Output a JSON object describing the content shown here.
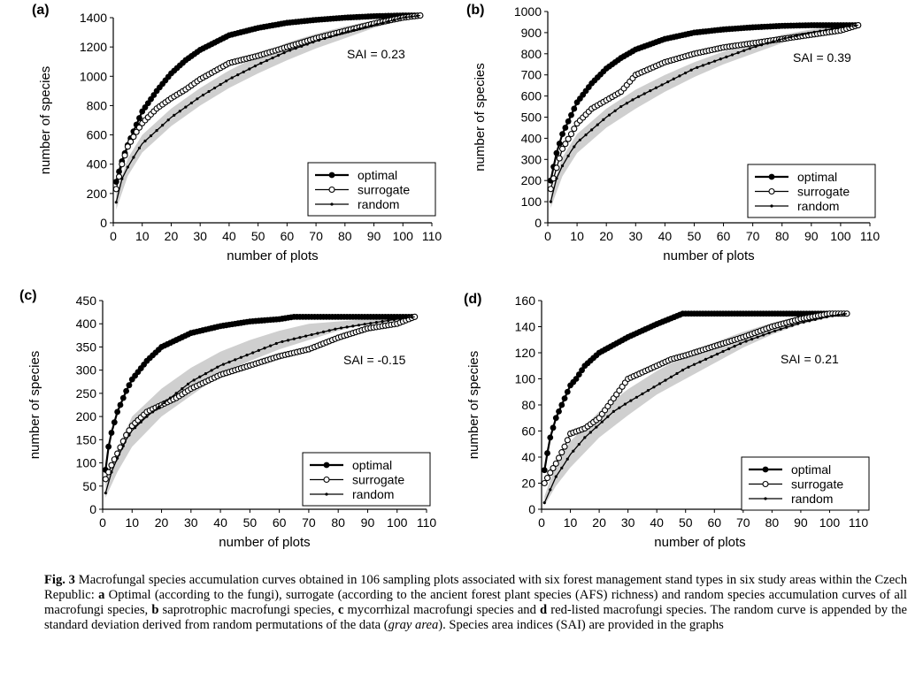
{
  "figure": {
    "caption": {
      "label": "Fig. 3",
      "parts": [
        {
          "t": "  Macrofungal species accumulation curves obtained in 106 sampling plots associated with six forest management stand types in six study areas within the Czech Republic: "
        },
        {
          "t": "a",
          "b": true
        },
        {
          "t": " Optimal (according to the fungi), surrogate (according to the ancient forest plant species (AFS) richness) and random species accumulation curves of all macrofungi species, "
        },
        {
          "t": "b",
          "b": true
        },
        {
          "t": " saprotrophic macrofungi species, "
        },
        {
          "t": "c",
          "b": true
        },
        {
          "t": " mycorrhizal macrofungi species and "
        },
        {
          "t": "d",
          "b": true
        },
        {
          "t": " red-listed macrofungi species. The random curve is appended by the standard deviation derived from random permutations of the data ("
        },
        {
          "t": "gray area",
          "i": true
        },
        {
          "t": "). Species area indices (SAI) are provided in the graphs"
        }
      ]
    }
  },
  "colors": {
    "line": "#000000",
    "band": "#cfcfcf",
    "open_fill": "#ffffff"
  },
  "chart_data": [
    {
      "panel": "(a)",
      "type": "line",
      "xlabel": "number of plots",
      "ylabel": "number of species",
      "xlim": [
        0,
        110
      ],
      "ylim": [
        0,
        1400
      ],
      "xticks": [
        0,
        10,
        20,
        30,
        40,
        50,
        60,
        70,
        80,
        90,
        100,
        110
      ],
      "yticks": [
        0,
        200,
        400,
        600,
        800,
        1000,
        1200,
        1400
      ],
      "annotation": "SAI = 0.23",
      "legend_position": "bottom-right",
      "series": [
        {
          "name": "optimal",
          "marker": "filled",
          "x": [
            1,
            3,
            5,
            8,
            10,
            15,
            20,
            25,
            30,
            40,
            50,
            60,
            70,
            80,
            90,
            100,
            106
          ],
          "y": [
            280,
            420,
            530,
            670,
            760,
            900,
            1020,
            1110,
            1180,
            1280,
            1330,
            1365,
            1385,
            1400,
            1410,
            1415,
            1415
          ]
        },
        {
          "name": "surrogate",
          "marker": "open",
          "x": [
            1,
            3,
            5,
            8,
            10,
            15,
            20,
            25,
            30,
            40,
            50,
            60,
            70,
            80,
            90,
            100,
            106
          ],
          "y": [
            230,
            400,
            520,
            620,
            680,
            780,
            850,
            910,
            980,
            1090,
            1140,
            1200,
            1260,
            1310,
            1360,
            1400,
            1415
          ]
        },
        {
          "name": "random",
          "marker": "dot",
          "x": [
            1,
            3,
            5,
            8,
            10,
            15,
            20,
            25,
            30,
            40,
            50,
            60,
            70,
            80,
            90,
            100,
            106
          ],
          "y": [
            140,
            300,
            380,
            480,
            540,
            630,
            720,
            790,
            860,
            980,
            1080,
            1170,
            1240,
            1300,
            1350,
            1400,
            1415
          ]
        }
      ],
      "band": {
        "x": [
          1,
          5,
          10,
          20,
          30,
          40,
          50,
          60,
          70,
          80,
          90,
          100,
          106
        ],
        "lower": [
          90,
          320,
          480,
          660,
          800,
          920,
          1020,
          1110,
          1190,
          1260,
          1330,
          1385,
          1415
        ],
        "upper": [
          200,
          440,
          600,
          780,
          920,
          1040,
          1140,
          1230,
          1290,
          1340,
          1380,
          1410,
          1415
        ]
      }
    },
    {
      "panel": "(b)",
      "type": "line",
      "xlabel": "number of plots",
      "ylabel": "number of species",
      "xlim": [
        0,
        110
      ],
      "ylim": [
        0,
        1000
      ],
      "xticks": [
        0,
        10,
        20,
        30,
        40,
        50,
        60,
        70,
        80,
        90,
        100,
        110
      ],
      "yticks": [
        0,
        100,
        200,
        300,
        400,
        500,
        600,
        700,
        800,
        900,
        1000
      ],
      "annotation": "SAI = 0.39",
      "legend_position": "bottom-right",
      "series": [
        {
          "name": "optimal",
          "marker": "filled",
          "x": [
            1,
            3,
            5,
            8,
            10,
            15,
            20,
            25,
            30,
            40,
            50,
            60,
            70,
            80,
            90,
            100,
            106
          ],
          "y": [
            200,
            330,
            420,
            510,
            570,
            660,
            730,
            780,
            820,
            870,
            900,
            915,
            925,
            932,
            935,
            935,
            935
          ]
        },
        {
          "name": "surrogate",
          "marker": "open",
          "x": [
            1,
            3,
            5,
            8,
            10,
            15,
            20,
            25,
            30,
            40,
            50,
            60,
            70,
            80,
            90,
            100,
            106
          ],
          "y": [
            160,
            260,
            350,
            420,
            470,
            540,
            580,
            620,
            700,
            760,
            800,
            830,
            850,
            870,
            890,
            910,
            935
          ]
        },
        {
          "name": "random",
          "marker": "dot",
          "x": [
            1,
            3,
            5,
            8,
            10,
            15,
            20,
            25,
            30,
            40,
            50,
            60,
            70,
            80,
            90,
            100,
            106
          ],
          "y": [
            100,
            210,
            270,
            340,
            380,
            440,
            500,
            550,
            590,
            660,
            730,
            780,
            830,
            870,
            900,
            925,
            935
          ]
        }
      ],
      "band": {
        "x": [
          1,
          5,
          10,
          20,
          30,
          40,
          50,
          60,
          70,
          80,
          90,
          100,
          106
        ],
        "lower": [
          70,
          220,
          330,
          450,
          540,
          620,
          690,
          750,
          800,
          850,
          890,
          920,
          935
        ],
        "upper": [
          140,
          310,
          420,
          540,
          630,
          700,
          760,
          810,
          850,
          890,
          915,
          930,
          935
        ]
      }
    },
    {
      "panel": "(c)",
      "type": "line",
      "xlabel": "number of plots",
      "ylabel": "number of species",
      "xlim": [
        0,
        110
      ],
      "ylim": [
        0,
        450
      ],
      "xticks": [
        0,
        10,
        20,
        30,
        40,
        50,
        60,
        70,
        80,
        90,
        100,
        110
      ],
      "yticks": [
        0,
        50,
        100,
        150,
        200,
        250,
        300,
        350,
        400,
        450
      ],
      "annotation": "SAI = -0.15",
      "legend_position": "bottom-right",
      "series": [
        {
          "name": "optimal",
          "marker": "filled",
          "x": [
            1,
            2,
            3,
            5,
            8,
            10,
            15,
            20,
            25,
            30,
            40,
            50,
            60,
            65,
            70,
            80,
            90,
            100,
            106
          ],
          "y": [
            85,
            135,
            165,
            210,
            255,
            280,
            320,
            350,
            365,
            380,
            395,
            405,
            410,
            415,
            415,
            415,
            415,
            415,
            415
          ]
        },
        {
          "name": "surrogate",
          "marker": "open",
          "x": [
            1,
            3,
            5,
            8,
            10,
            15,
            20,
            25,
            30,
            40,
            50,
            60,
            70,
            80,
            90,
            100,
            106
          ],
          "y": [
            65,
            95,
            120,
            160,
            180,
            210,
            225,
            240,
            260,
            290,
            310,
            330,
            345,
            370,
            390,
            400,
            415
          ]
        },
        {
          "name": "random",
          "marker": "dot",
          "x": [
            1,
            3,
            5,
            8,
            10,
            15,
            20,
            25,
            30,
            40,
            50,
            60,
            70,
            80,
            90,
            100,
            106
          ],
          "y": [
            35,
            80,
            110,
            150,
            170,
            200,
            225,
            250,
            275,
            310,
            335,
            360,
            375,
            390,
            400,
            410,
            415
          ]
        }
      ],
      "band": {
        "x": [
          1,
          5,
          10,
          20,
          30,
          40,
          50,
          60,
          70,
          80,
          90,
          100,
          106
        ],
        "lower": [
          25,
          80,
          135,
          200,
          245,
          290,
          320,
          345,
          365,
          385,
          400,
          410,
          415
        ],
        "upper": [
          55,
          130,
          200,
          260,
          305,
          340,
          365,
          385,
          400,
          405,
          410,
          415,
          415
        ]
      }
    },
    {
      "panel": "(d)",
      "type": "line",
      "xlabel": "number of plots",
      "ylabel": "number of species",
      "xlim": [
        0,
        110
      ],
      "ylim": [
        0,
        160
      ],
      "xticks": [
        0,
        10,
        20,
        30,
        40,
        50,
        60,
        70,
        80,
        90,
        100,
        110
      ],
      "yticks": [
        0,
        20,
        40,
        60,
        80,
        100,
        120,
        140,
        160
      ],
      "annotation": "SAI = 0.21",
      "legend_position": "bottom-right",
      "series": [
        {
          "name": "optimal",
          "marker": "filled",
          "x": [
            1,
            2,
            3,
            5,
            8,
            10,
            12,
            15,
            20,
            25,
            30,
            40,
            49,
            60,
            70,
            80,
            90,
            100,
            106
          ],
          "y": [
            30,
            43,
            55,
            70,
            85,
            95,
            100,
            110,
            120,
            126,
            132,
            142,
            150,
            150,
            150,
            150,
            150,
            150,
            150
          ]
        },
        {
          "name": "surrogate",
          "marker": "open",
          "x": [
            1,
            3,
            5,
            8,
            10,
            15,
            20,
            25,
            30,
            35,
            40,
            45,
            50,
            60,
            70,
            80,
            90,
            100,
            106
          ],
          "y": [
            20,
            28,
            35,
            48,
            58,
            62,
            70,
            85,
            100,
            105,
            110,
            115,
            118,
            125,
            132,
            140,
            146,
            150,
            150
          ]
        },
        {
          "name": "random",
          "marker": "dot",
          "x": [
            1,
            3,
            5,
            8,
            10,
            15,
            20,
            25,
            30,
            40,
            50,
            60,
            70,
            80,
            90,
            100,
            106
          ],
          "y": [
            5,
            15,
            25,
            35,
            42,
            55,
            65,
            75,
            82,
            95,
            108,
            118,
            128,
            136,
            143,
            148,
            150
          ]
        }
      ],
      "band": {
        "x": [
          1,
          5,
          10,
          20,
          30,
          40,
          50,
          60,
          70,
          80,
          90,
          100,
          106
        ],
        "lower": [
          3,
          18,
          32,
          55,
          72,
          88,
          100,
          112,
          124,
          134,
          142,
          147,
          150
        ],
        "upper": [
          10,
          35,
          52,
          75,
          92,
          106,
          118,
          128,
          136,
          143,
          148,
          150,
          150
        ]
      }
    }
  ]
}
